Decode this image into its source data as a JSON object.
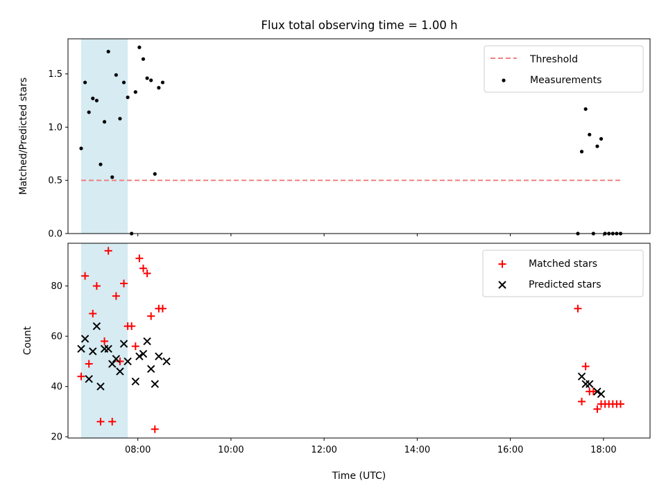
{
  "title": "Flux total observing time = 1.00 h",
  "colors": {
    "threshold": "#f08080",
    "measurements": "#000000",
    "matched": "#ff0000",
    "predicted": "#000000",
    "span": "#add8e6"
  },
  "chart_data": [
    {
      "type": "scatter",
      "panel": "top",
      "ylabel": "Matched/Predicted stars",
      "ylim": [
        0,
        1.83
      ],
      "yticks": [
        0.0,
        0.5,
        1.0,
        1.5
      ],
      "ytick_labels": [
        "0.0",
        "0.5",
        "1.0",
        "1.5"
      ],
      "xlim": [
        "06:30",
        "19:00"
      ],
      "highlight_span": [
        "06:47",
        "07:47"
      ],
      "legend": {
        "position": "upper right",
        "entries": [
          "Threshold",
          "Measurements"
        ]
      },
      "series": [
        {
          "name": "Threshold",
          "kind": "dashed-line",
          "x": [
            "06:47",
            "18:22"
          ],
          "y": [
            0.5,
            0.5
          ]
        },
        {
          "name": "Measurements",
          "kind": "dots",
          "x": [
            "06:47",
            "06:52",
            "06:57",
            "07:02",
            "07:07",
            "07:12",
            "07:17",
            "07:22",
            "07:27",
            "07:32",
            "07:37",
            "07:42",
            "07:47",
            "07:52",
            "07:57",
            "08:02",
            "08:07",
            "08:12",
            "08:17",
            "08:22",
            "08:27",
            "08:32",
            "08:37",
            "17:27",
            "17:32",
            "17:37",
            "17:42",
            "17:47",
            "17:52",
            "17:57",
            "18:02",
            "18:07",
            "18:12",
            "18:17",
            "18:22"
          ],
          "y": [
            0.8,
            1.42,
            1.14,
            1.27,
            1.25,
            0.65,
            1.05,
            1.71,
            0.53,
            1.49,
            1.08,
            1.42,
            1.28,
            0.0,
            1.33,
            1.75,
            1.64,
            1.46,
            1.44,
            0.56,
            1.37,
            1.42,
            null,
            0.0,
            0.77,
            1.17,
            0.93,
            0.0,
            0.82,
            0.89,
            0.0,
            0.0,
            0.0,
            0.0,
            0.0
          ]
        }
      ]
    },
    {
      "type": "scatter",
      "panel": "bottom",
      "xlabel": "Time (UTC)",
      "ylabel": "Count",
      "ylim": [
        19.5,
        97
      ],
      "yticks": [
        20,
        40,
        60,
        80
      ],
      "ytick_labels": [
        "20",
        "40",
        "60",
        "80"
      ],
      "xlim": [
        "06:30",
        "19:00"
      ],
      "xticks": [
        "08:00",
        "10:00",
        "12:00",
        "14:00",
        "16:00",
        "18:00"
      ],
      "xtick_labels": [
        "08:00",
        "10:00",
        "12:00",
        "14:00",
        "16:00",
        "18:00"
      ],
      "highlight_span": [
        "06:47",
        "07:47"
      ],
      "legend": {
        "position": "upper right",
        "entries": [
          "Matched stars",
          "Predicted stars"
        ]
      },
      "series": [
        {
          "name": "Matched stars",
          "kind": "plus",
          "x": [
            "06:47",
            "06:52",
            "06:57",
            "07:02",
            "07:07",
            "07:12",
            "07:17",
            "07:22",
            "07:27",
            "07:32",
            "07:37",
            "07:42",
            "07:47",
            "07:52",
            "07:57",
            "08:02",
            "08:07",
            "08:12",
            "08:17",
            "08:22",
            "08:27",
            "08:32",
            "08:37",
            "17:27",
            "17:32",
            "17:37",
            "17:42",
            "17:47",
            "17:52",
            "17:57",
            "18:02",
            "18:07",
            "18:12",
            "18:17",
            "18:22"
          ],
          "y": [
            44,
            84,
            49,
            69,
            80,
            26,
            58,
            94,
            26,
            76,
            50,
            81,
            64,
            64,
            56,
            91,
            87,
            85,
            68,
            23,
            71,
            71,
            null,
            71,
            34,
            48,
            38,
            38,
            31,
            33,
            33,
            33,
            33,
            33,
            33
          ]
        },
        {
          "name": "Predicted stars",
          "kind": "x",
          "x": [
            "06:47",
            "06:52",
            "06:57",
            "07:02",
            "07:07",
            "07:12",
            "07:17",
            "07:22",
            "07:27",
            "07:32",
            "07:37",
            "07:42",
            "07:47",
            "07:52",
            "07:57",
            "08:02",
            "08:07",
            "08:12",
            "08:17",
            "08:22",
            "08:27",
            "08:32",
            "08:37",
            "17:27",
            "17:32",
            "17:37",
            "17:42",
            "17:47",
            "17:52",
            "17:57",
            "18:02",
            "18:07",
            "18:12",
            "18:17",
            "18:22"
          ],
          "y": [
            55,
            59,
            43,
            54,
            64,
            40,
            55,
            55,
            49,
            51,
            46,
            57,
            50,
            null,
            42,
            52,
            53,
            58,
            47,
            41,
            52,
            null,
            50,
            null,
            44,
            41,
            41,
            null,
            38,
            37,
            null,
            null,
            null,
            null,
            null
          ]
        }
      ]
    }
  ]
}
